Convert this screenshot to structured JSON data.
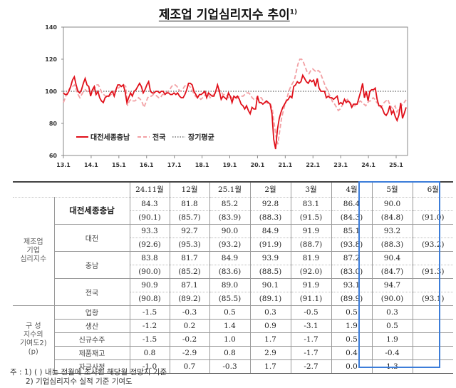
{
  "title": "제조업 기업심리지수 추이",
  "title_sup": "1)",
  "chart_data": {
    "type": "line",
    "title": "제조업 기업심리지수 추이",
    "xlabel": "",
    "ylabel": "",
    "ylim": [
      60,
      140
    ],
    "yticks": [
      60,
      80,
      100,
      120,
      140
    ],
    "xticks": [
      "13.1",
      "14.1",
      "15.1",
      "16.1",
      "17.1",
      "18.1",
      "19.1",
      "20.1",
      "21.1",
      "22.1",
      "23.1",
      "24.1",
      "25.1"
    ],
    "x_start": "13.1",
    "x_end": "25.5",
    "legend": [
      "대전세종충남",
      "전국",
      "장기평균"
    ],
    "legend_position": "lower-left inside",
    "grid": false,
    "series": [
      {
        "name": "대전세종충남",
        "color": "#e0101a",
        "style": "solid",
        "values": [
          99,
          98,
          98,
          100,
          103,
          107,
          109,
          104,
          100,
          99,
          101,
          105,
          108,
          104,
          103,
          97,
          101,
          103,
          98,
          100,
          96,
          94,
          93,
          96,
          97,
          97,
          99,
          100,
          97,
          101,
          104,
          104,
          103,
          104,
          100,
          93,
          96,
          99,
          97,
          100,
          101,
          103,
          105,
          103,
          99,
          101,
          104,
          106,
          100,
          99,
          99,
          100,
          100,
          99,
          100,
          100,
          98,
          99,
          99,
          98,
          98,
          99,
          98,
          99,
          97,
          96,
          96,
          98,
          101,
          105,
          105,
          104,
          100,
          98,
          96,
          98,
          98,
          99,
          100,
          96,
          99,
          98,
          97,
          97,
          100,
          104,
          100,
          95,
          97,
          96,
          95,
          99,
          97,
          93,
          97,
          96,
          97,
          95,
          92,
          91,
          89,
          91,
          88,
          86,
          90,
          89,
          89,
          97,
          93,
          93,
          92,
          93,
          94,
          93,
          92,
          86,
          70,
          64,
          76,
          83,
          87,
          90,
          92,
          94,
          95,
          97,
          96,
          103,
          104,
          106,
          105,
          106,
          110,
          108,
          106,
          105,
          107,
          106,
          107,
          103,
          108,
          102,
          100,
          100,
          100,
          96,
          97,
          96,
          96,
          95,
          96,
          97,
          92,
          93,
          92,
          95,
          93,
          94,
          93,
          90,
          92,
          92,
          92,
          96,
          100,
          105,
          96,
          100,
          94,
          100,
          101,
          101,
          102,
          95,
          91,
          91,
          89,
          86,
          85,
          87,
          91,
          86,
          88,
          84.3,
          81.8,
          85.2,
          92.8,
          83.1,
          86.4,
          90.0
        ],
        "note": "approximate monthly readings; last 7 points from table"
      },
      {
        "name": "전국",
        "color": "#f2a0a4",
        "style": "dashed",
        "values": [
          93,
          96,
          99,
          101,
          103,
          103,
          104,
          101,
          98,
          96,
          98,
          100,
          101,
          100,
          99,
          98,
          100,
          102,
          104,
          104,
          102,
          99,
          98,
          97,
          96,
          97,
          98,
          99,
          100,
          101,
          102,
          103,
          104,
          104,
          103,
          91,
          94,
          95,
          94,
          94,
          95,
          96,
          95,
          93,
          90,
          93,
          96,
          97,
          97,
          98,
          98,
          97,
          96,
          96,
          98,
          98,
          99,
          100,
          101,
          103,
          104,
          104,
          103,
          101,
          100,
          101,
          103,
          104,
          104,
          103,
          101,
          99,
          97,
          96,
          96,
          95,
          96,
          97,
          99,
          98,
          96,
          97,
          98,
          99,
          100,
          101,
          100,
          98,
          98,
          98,
          96,
          97,
          96,
          95,
          95,
          96,
          97,
          97,
          97,
          98,
          99,
          99,
          98,
          96,
          95,
          95,
          97,
          96,
          96,
          94,
          93,
          93,
          92,
          92,
          89,
          80,
          72,
          67,
          75,
          83,
          88,
          92,
          96,
          100,
          103,
          105,
          107,
          112,
          117,
          120,
          120,
          118,
          115,
          112,
          111,
          113,
          114,
          113,
          112,
          113,
          112,
          109,
          106,
          103,
          101,
          98,
          96,
          93,
          92,
          90,
          88,
          89,
          91,
          93,
          94,
          95,
          93,
          92,
          91,
          91,
          92,
          93,
          94,
          93,
          92,
          91,
          93,
          94,
          94,
          96,
          95,
          93,
          92,
          90,
          91,
          93,
          94,
          95,
          92,
          90,
          89,
          90.9,
          87.1,
          89.0,
          90.1,
          91.9,
          93.1,
          94.7
        ],
        "note": "approximate monthly readings; last 7 points from table"
      },
      {
        "name": "장기평균",
        "color": "#666666",
        "style": "dotted",
        "values": [
          100
        ]
      }
    ]
  },
  "table": {
    "columns": [
      "24.11월",
      "12월",
      "25.1월",
      "2월",
      "3월",
      "4월",
      "5월",
      "6월"
    ],
    "group1_label": [
      "제조업",
      "기업",
      "심리지수"
    ],
    "group2_label": [
      "구  성",
      "지수의",
      "기여도2)",
      "(p)"
    ],
    "rows_index": [
      {
        "label": "대전세종충남",
        "actual": [
          "84.3",
          "81.8",
          "85.2",
          "92.8",
          "83.1",
          "86.4",
          "90.0",
          ""
        ],
        "forecast": [
          "(90.1)",
          "(85.7)",
          "(83.9)",
          "(88.3)",
          "(91.5)",
          "(84.3)",
          "(84.8)",
          "(91.0)"
        ]
      },
      {
        "label": "대전",
        "actual": [
          "93.3",
          "92.7",
          "90.0",
          "84.9",
          "91.9",
          "85.1",
          "93.2",
          ""
        ],
        "forecast": [
          "(92.6)",
          "(95.3)",
          "(93.2)",
          "(91.9)",
          "(88.7)",
          "(93.8)",
          "(88.3)",
          "(93.2)"
        ]
      },
      {
        "label": "충남",
        "actual": [
          "83.8",
          "81.7",
          "84.9",
          "93.9",
          "81.9",
          "87.2",
          "90.4",
          ""
        ],
        "forecast": [
          "(90.0)",
          "(85.2)",
          "(83.6)",
          "(88.5)",
          "(92.0)",
          "(83.0)",
          "(84.7)",
          "(91.3)"
        ]
      },
      {
        "label": "전국",
        "actual": [
          "90.9",
          "87.1",
          "89.0",
          "90.1",
          "91.9",
          "93.1",
          "94.7",
          ""
        ],
        "forecast": [
          "(90.8)",
          "(89.2)",
          "(85.5)",
          "(89.1)",
          "(91.1)",
          "(89.9)",
          "(90.0)",
          "(93.1)"
        ]
      }
    ],
    "rows_contrib": [
      {
        "label": "업황",
        "values": [
          "-1.5",
          "-0.3",
          "0.5",
          "0.3",
          "-0.5",
          "0.5",
          "0.3",
          ""
        ]
      },
      {
        "label": "생산",
        "values": [
          "-1.2",
          "0.2",
          "1.4",
          "0.9",
          "-3.1",
          "1.9",
          "0.5",
          ""
        ]
      },
      {
        "label": "신규수주",
        "values": [
          "-1.5",
          "-0.2",
          "1.0",
          "1.7",
          "-1.7",
          "0.5",
          "1.9",
          ""
        ]
      },
      {
        "label": "제품재고",
        "values": [
          "0.8",
          "-2.9",
          "0.8",
          "2.9",
          "-1.7",
          "0.4",
          "-0.4",
          ""
        ]
      },
      {
        "label": "자금사정",
        "values": [
          "-1.0",
          "0.7",
          "-0.3",
          "1.7",
          "-2.7",
          "0.0",
          "1.3",
          ""
        ]
      }
    ],
    "highlight_color": "#3c7dd9"
  },
  "notes": {
    "line1": "주 : 1) (     ) 내는 전월에 조사된 해당월 전망치 기준",
    "line2": "2) 기업심리지수 실적 기준 기여도"
  }
}
